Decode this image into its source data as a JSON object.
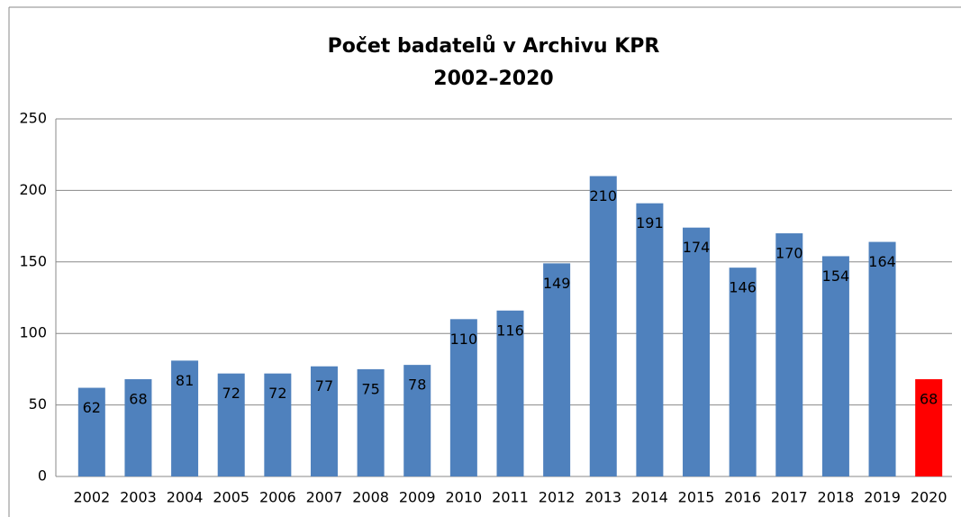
{
  "chart_data": {
    "type": "bar",
    "title": "Počet badatelů v Archivu KPR",
    "subtitle": "2002–2020",
    "categories": [
      "2002",
      "2003",
      "2004",
      "2005",
      "2006",
      "2007",
      "2008",
      "2009",
      "2010",
      "2011",
      "2012",
      "2013",
      "2014",
      "2015",
      "2016",
      "2017",
      "2018",
      "2019",
      "2020"
    ],
    "values": [
      62,
      68,
      81,
      72,
      72,
      77,
      75,
      78,
      110,
      116,
      149,
      210,
      191,
      174,
      146,
      170,
      154,
      164,
      68
    ],
    "colors": [
      "#4f81bd",
      "#4f81bd",
      "#4f81bd",
      "#4f81bd",
      "#4f81bd",
      "#4f81bd",
      "#4f81bd",
      "#4f81bd",
      "#4f81bd",
      "#4f81bd",
      "#4f81bd",
      "#4f81bd",
      "#4f81bd",
      "#4f81bd",
      "#4f81bd",
      "#4f81bd",
      "#4f81bd",
      "#4f81bd",
      "#ff0000"
    ],
    "ylim": [
      0,
      250
    ],
    "yticks": [
      0,
      50,
      100,
      150,
      200,
      250
    ],
    "grid": true
  }
}
